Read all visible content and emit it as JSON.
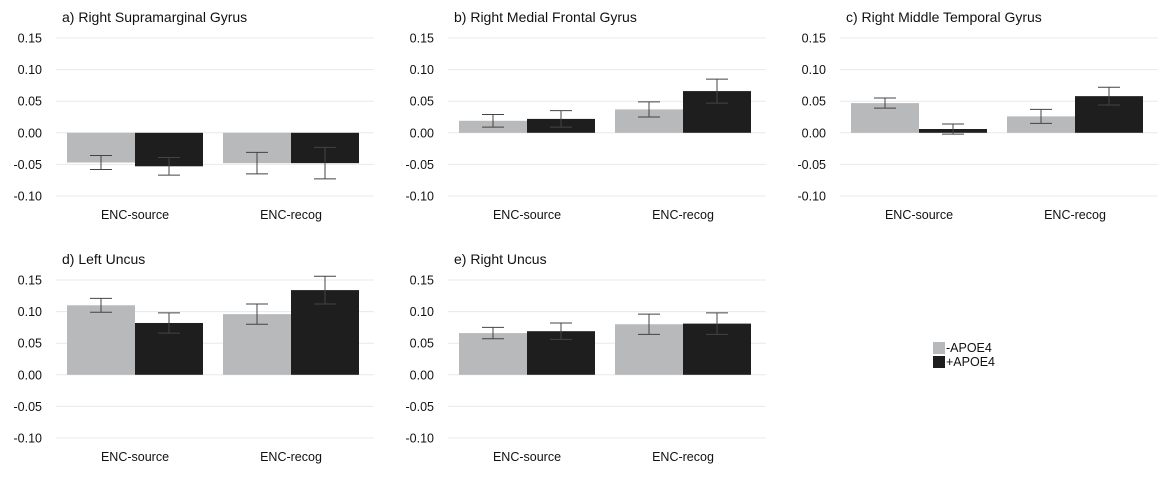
{
  "chart_data": [
    {
      "type": "bar",
      "title": "a) Right Supramarginal Gyrus",
      "categories": [
        "ENC-source",
        "ENC-recog"
      ],
      "ylim": [
        -0.1,
        0.15
      ],
      "yticks": [
        "0.15",
        "0.10",
        "0.05",
        "0.00",
        "-0.05",
        "-0.10"
      ],
      "grid": true,
      "series": [
        {
          "name": "-APOE4",
          "values": [
            -0.047,
            -0.048
          ],
          "errors": [
            0.011,
            0.017
          ]
        },
        {
          "name": "+APOE4",
          "values": [
            -0.053,
            -0.048
          ],
          "errors": [
            0.014,
            0.025
          ]
        }
      ]
    },
    {
      "type": "bar",
      "title": "b) Right Medial Frontal Gyrus",
      "categories": [
        "ENC-source",
        "ENC-recog"
      ],
      "ylim": [
        -0.1,
        0.15
      ],
      "yticks": [
        "0.15",
        "0.10",
        "0.05",
        "0.00",
        "-0.05",
        "-0.10"
      ],
      "grid": true,
      "series": [
        {
          "name": "-APOE4",
          "values": [
            0.019,
            0.037
          ],
          "errors": [
            0.01,
            0.012
          ]
        },
        {
          "name": "+APOE4",
          "values": [
            0.022,
            0.066
          ],
          "errors": [
            0.013,
            0.019
          ]
        }
      ]
    },
    {
      "type": "bar",
      "title": "c) Right Middle Temporal Gyrus",
      "categories": [
        "ENC-source",
        "ENC-recog"
      ],
      "ylim": [
        -0.1,
        0.15
      ],
      "yticks": [
        "0.15",
        "0.10",
        "0.05",
        "0.00",
        "-0.05",
        "-0.10"
      ],
      "grid": true,
      "series": [
        {
          "name": "-APOE4",
          "values": [
            0.047,
            0.026
          ],
          "errors": [
            0.008,
            0.011
          ]
        },
        {
          "name": "+APOE4",
          "values": [
            0.006,
            0.058
          ],
          "errors": [
            0.008,
            0.014
          ]
        }
      ]
    },
    {
      "type": "bar",
      "title": "d) Left Uncus",
      "categories": [
        "ENC-source",
        "ENC-recog"
      ],
      "ylim": [
        -0.1,
        0.15
      ],
      "yticks": [
        "0.15",
        "0.10",
        "0.05",
        "0.00",
        "-0.05",
        "-0.10"
      ],
      "grid": true,
      "series": [
        {
          "name": "-APOE4",
          "values": [
            0.11,
            0.096
          ],
          "errors": [
            0.011,
            0.016
          ]
        },
        {
          "name": "+APOE4",
          "values": [
            0.082,
            0.134
          ],
          "errors": [
            0.016,
            0.022
          ]
        }
      ]
    },
    {
      "type": "bar",
      "title": "e) Right Uncus",
      "categories": [
        "ENC-source",
        "ENC-recog"
      ],
      "ylim": [
        -0.1,
        0.15
      ],
      "yticks": [
        "0.15",
        "0.10",
        "0.05",
        "0.00",
        "-0.05",
        "-0.10"
      ],
      "grid": true,
      "series": [
        {
          "name": "-APOE4",
          "values": [
            0.066,
            0.08
          ],
          "errors": [
            0.009,
            0.016
          ]
        },
        {
          "name": "+APOE4",
          "values": [
            0.069,
            0.081
          ],
          "errors": [
            0.013,
            0.017
          ]
        }
      ]
    }
  ],
  "legend": {
    "placement": "right",
    "items": [
      {
        "label": "-APOE4",
        "color": "#b8b9bb"
      },
      {
        "label": "+APOE4",
        "color": "#1e1e1e"
      }
    ]
  },
  "colors": {
    "minus_apoe4": "#b8b9bb",
    "plus_apoe4": "#1e1e1e",
    "grid": "#e8e8e8",
    "error_bar": "#444444"
  }
}
